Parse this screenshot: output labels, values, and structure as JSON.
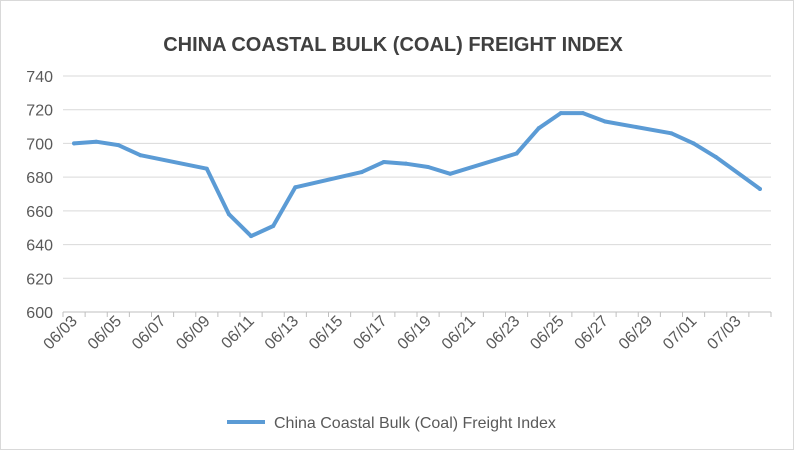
{
  "chart_data": {
    "type": "line",
    "title": "CHINA COASTAL BULK (COAL) FREIGHT INDEX",
    "xlabel": "",
    "ylabel": "",
    "ylim": [
      600,
      740
    ],
    "y_ticks": [
      "740",
      "720",
      "700",
      "680",
      "660",
      "640",
      "620",
      "600"
    ],
    "x_tick_labels": [
      "06/03",
      "06/05",
      "06/07",
      "06/09",
      "06/11",
      "06/13",
      "06/15",
      "06/17",
      "06/19",
      "06/21",
      "06/23",
      "06/25",
      "06/27",
      "06/29",
      "07/01",
      "07/03"
    ],
    "grid": "horizontal",
    "legend_position": "bottom",
    "line_color": "#5b9bd5",
    "series": [
      {
        "name": "China Coastal Bulk (Coal) Freight Index",
        "points": [
          {
            "x": "06/03",
            "y": 700
          },
          {
            "x": "06/04",
            "y": 701
          },
          {
            "x": "06/05",
            "y": 699
          },
          {
            "x": "06/06",
            "y": 693
          },
          {
            "x": "06/09",
            "y": 685
          },
          {
            "x": "06/10",
            "y": 658
          },
          {
            "x": "06/11",
            "y": 645
          },
          {
            "x": "06/12",
            "y": 651
          },
          {
            "x": "06/13",
            "y": 674
          },
          {
            "x": "06/16",
            "y": 683
          },
          {
            "x": "06/17",
            "y": 689
          },
          {
            "x": "06/18",
            "y": 688
          },
          {
            "x": "06/19",
            "y": 686
          },
          {
            "x": "06/20",
            "y": 682
          },
          {
            "x": "06/23",
            "y": 694
          },
          {
            "x": "06/24",
            "y": 709
          },
          {
            "x": "06/25",
            "y": 718
          },
          {
            "x": "06/26",
            "y": 718
          },
          {
            "x": "06/27",
            "y": 713
          },
          {
            "x": "06/30",
            "y": 706
          },
          {
            "x": "07/01",
            "y": 700
          },
          {
            "x": "07/02",
            "y": 692
          },
          {
            "x": "07/04",
            "y": 673
          }
        ]
      }
    ]
  }
}
